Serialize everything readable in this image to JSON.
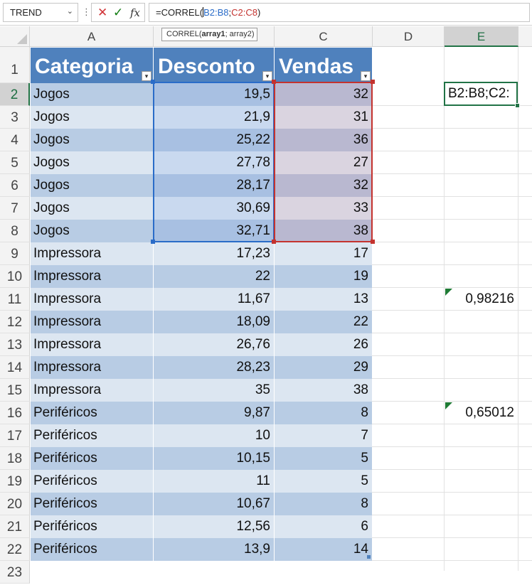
{
  "formula_bar": {
    "name_box": "TREND",
    "formula_prefix": "=CORREL(",
    "formula_ref1": "B2:B8",
    "formula_sep": ";",
    "formula_ref2": "C2:C8",
    "formula_suffix": ")",
    "tooltip_fn": "CORREL(",
    "tooltip_arg1": "array1",
    "tooltip_rest": "; array2)"
  },
  "columns": [
    "A",
    "B",
    "C",
    "D",
    "E"
  ],
  "table": {
    "headers": [
      "Categoria",
      "Desconto",
      "Vendas"
    ],
    "rows": [
      [
        "Jogos",
        "19,5",
        "32"
      ],
      [
        "Jogos",
        "21,9",
        "31"
      ],
      [
        "Jogos",
        "25,22",
        "36"
      ],
      [
        "Jogos",
        "27,78",
        "27"
      ],
      [
        "Jogos",
        "28,17",
        "32"
      ],
      [
        "Jogos",
        "30,69",
        "33"
      ],
      [
        "Jogos",
        "32,71",
        "38"
      ],
      [
        "Impressora",
        "17,23",
        "17"
      ],
      [
        "Impressora",
        "22",
        "19"
      ],
      [
        "Impressora",
        "11,67",
        "13"
      ],
      [
        "Impressora",
        "18,09",
        "22"
      ],
      [
        "Impressora",
        "26,76",
        "26"
      ],
      [
        "Impressora",
        "28,23",
        "29"
      ],
      [
        "Impressora",
        "35",
        "38"
      ],
      [
        "Periféricos",
        "9,87",
        "8"
      ],
      [
        "Periféricos",
        "10",
        "7"
      ],
      [
        "Periféricos",
        "10,15",
        "5"
      ],
      [
        "Periféricos",
        "11",
        "5"
      ],
      [
        "Periféricos",
        "10,67",
        "8"
      ],
      [
        "Periféricos",
        "12,56",
        "6"
      ],
      [
        "Periféricos",
        "13,9",
        "14"
      ]
    ]
  },
  "column_e": {
    "active_cell": "B2:B8;C2:",
    "e11": "0,98216",
    "e16": "0,65012"
  },
  "colors": {
    "table_header": "#4f81bd",
    "band_dark": "#b8cce4",
    "band_light": "#dce6f1",
    "range_blue": "#2a6cc8",
    "range_red": "#c4332f",
    "excel_green": "#217346"
  }
}
